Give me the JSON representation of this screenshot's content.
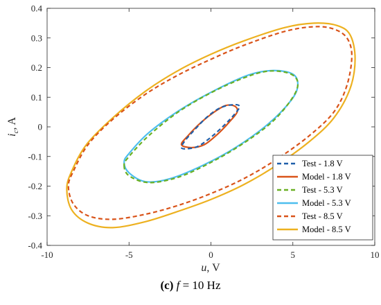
{
  "chart_data": {
    "type": "line",
    "title": "",
    "xlabel": {
      "var": "u",
      "unit": ", V"
    },
    "ylabel": {
      "var": "i",
      "sub": "c",
      "unit": ", A"
    },
    "xlim": [
      -10,
      10
    ],
    "ylim": [
      -0.4,
      0.4
    ],
    "xticks": [
      "-10",
      "-5",
      "0",
      "5",
      "10"
    ],
    "yticks": [
      "0.4",
      "0.3",
      "0.2",
      "0.1",
      "0",
      "-0.1",
      "-0.2",
      "-0.3",
      "-0.4"
    ],
    "grid": false,
    "legend_position": "bottom-right",
    "series": [
      {
        "name": "Test - 1.8 V",
        "color": "#1f5faa",
        "dash": "dashed",
        "points": [
          [
            -1.8,
            -0.07
          ],
          [
            -1.5,
            -0.074
          ],
          [
            -0.8,
            -0.066
          ],
          [
            0.0,
            -0.035
          ],
          [
            0.8,
            0.005
          ],
          [
            1.4,
            0.04
          ],
          [
            1.75,
            0.068
          ],
          [
            1.4,
            0.075
          ],
          [
            0.6,
            0.065
          ],
          [
            -0.2,
            0.035
          ],
          [
            -1.0,
            -0.01
          ],
          [
            -1.6,
            -0.048
          ],
          [
            -1.8,
            -0.07
          ]
        ]
      },
      {
        "name": "Model - 1.8 V",
        "color": "#d95319",
        "dash": "solid",
        "points": [
          [
            -1.8,
            -0.06
          ],
          [
            -1.2,
            -0.07
          ],
          [
            -0.4,
            -0.06
          ],
          [
            0.4,
            -0.025
          ],
          [
            1.1,
            0.015
          ],
          [
            1.6,
            0.05
          ],
          [
            1.45,
            0.07
          ],
          [
            0.9,
            0.072
          ],
          [
            0.2,
            0.05
          ],
          [
            -0.6,
            0.015
          ],
          [
            -1.4,
            -0.03
          ],
          [
            -1.8,
            -0.06
          ]
        ]
      },
      {
        "name": "Test - 5.3 V",
        "color": "#6ab023",
        "dash": "dashed",
        "points": [
          [
            -5.3,
            -0.13
          ],
          [
            -5.0,
            -0.165
          ],
          [
            -3.8,
            -0.188
          ],
          [
            -2.0,
            -0.17
          ],
          [
            0.0,
            -0.12
          ],
          [
            2.0,
            -0.055
          ],
          [
            3.8,
            0.02
          ],
          [
            5.0,
            0.1
          ],
          [
            5.3,
            0.15
          ],
          [
            4.8,
            0.18
          ],
          [
            3.5,
            0.188
          ],
          [
            2.0,
            0.165
          ],
          [
            0.0,
            0.115
          ],
          [
            -2.0,
            0.05
          ],
          [
            -3.8,
            -0.03
          ],
          [
            -5.0,
            -0.1
          ],
          [
            -5.3,
            -0.13
          ]
        ]
      },
      {
        "name": "Model - 5.3 V",
        "color": "#4dbeee",
        "dash": "solid",
        "points": [
          [
            -5.3,
            -0.12
          ],
          [
            -5.0,
            -0.155
          ],
          [
            -4.0,
            -0.185
          ],
          [
            -2.5,
            -0.175
          ],
          [
            -0.5,
            -0.13
          ],
          [
            1.5,
            -0.07
          ],
          [
            3.5,
            0.01
          ],
          [
            4.9,
            0.09
          ],
          [
            5.3,
            0.14
          ],
          [
            5.0,
            0.178
          ],
          [
            3.8,
            0.19
          ],
          [
            2.3,
            0.175
          ],
          [
            0.3,
            0.125
          ],
          [
            -1.8,
            0.06
          ],
          [
            -3.8,
            -0.02
          ],
          [
            -5.0,
            -0.09
          ],
          [
            -5.3,
            -0.12
          ]
        ]
      },
      {
        "name": "Test - 8.5 V",
        "color": "#d95319",
        "dash": "dashed",
        "points": [
          [
            -8.7,
            -0.2
          ],
          [
            -8.4,
            -0.26
          ],
          [
            -7.5,
            -0.3
          ],
          [
            -6.0,
            -0.312
          ],
          [
            -4.0,
            -0.295
          ],
          [
            -2.0,
            -0.265
          ],
          [
            0.0,
            -0.225
          ],
          [
            2.0,
            -0.175
          ],
          [
            4.0,
            -0.11
          ],
          [
            6.0,
            -0.03
          ],
          [
            7.5,
            0.05
          ],
          [
            8.3,
            0.14
          ],
          [
            8.6,
            0.24
          ],
          [
            8.3,
            0.3
          ],
          [
            7.5,
            0.33
          ],
          [
            6.3,
            0.338
          ],
          [
            4.5,
            0.322
          ],
          [
            2.0,
            0.275
          ],
          [
            0.0,
            0.228
          ],
          [
            -2.0,
            0.175
          ],
          [
            -4.0,
            0.11
          ],
          [
            -6.0,
            0.025
          ],
          [
            -7.5,
            -0.06
          ],
          [
            -8.4,
            -0.15
          ],
          [
            -8.7,
            -0.2
          ]
        ]
      },
      {
        "name": "Model - 8.5 V",
        "color": "#edb120",
        "dash": "solid",
        "points": [
          [
            -8.8,
            -0.21
          ],
          [
            -8.5,
            -0.28
          ],
          [
            -7.5,
            -0.325
          ],
          [
            -6.0,
            -0.34
          ],
          [
            -4.0,
            -0.32
          ],
          [
            -2.0,
            -0.285
          ],
          [
            0.0,
            -0.245
          ],
          [
            2.0,
            -0.195
          ],
          [
            4.0,
            -0.13
          ],
          [
            6.0,
            -0.05
          ],
          [
            7.5,
            0.03
          ],
          [
            8.5,
            0.13
          ],
          [
            8.8,
            0.23
          ],
          [
            8.5,
            0.31
          ],
          [
            7.7,
            0.342
          ],
          [
            6.3,
            0.35
          ],
          [
            4.5,
            0.335
          ],
          [
            2.0,
            0.29
          ],
          [
            0.0,
            0.245
          ],
          [
            -2.0,
            0.19
          ],
          [
            -4.0,
            0.12
          ],
          [
            -6.0,
            0.03
          ],
          [
            -7.6,
            -0.06
          ],
          [
            -8.5,
            -0.15
          ],
          [
            -8.8,
            -0.21
          ]
        ]
      }
    ]
  },
  "caption": {
    "label": "(c)",
    "var": "f",
    "rest": " = 10 Hz"
  }
}
